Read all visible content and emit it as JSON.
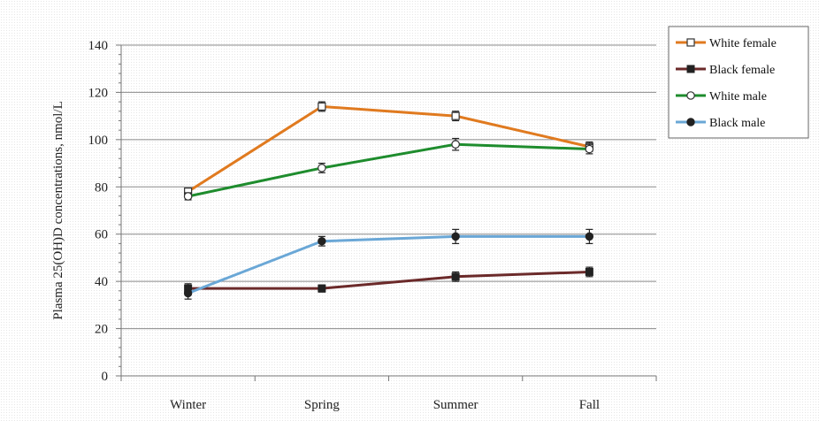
{
  "chart_data": {
    "type": "line",
    "title": "",
    "xlabel": "",
    "ylabel": "Plasma 25(OH)D concentrations, nmol/L",
    "categories": [
      "Winter",
      "Spring",
      "Summer",
      "Fall"
    ],
    "ylim": [
      0,
      140
    ],
    "yticks": [
      0,
      20,
      40,
      60,
      80,
      100,
      120,
      140
    ],
    "grid": true,
    "legend_position": "top-right",
    "series": [
      {
        "name": "White female",
        "values": [
          78,
          114,
          110,
          97
        ],
        "errors": [
          1.5,
          2,
          2,
          2
        ],
        "color": "#E07A1F",
        "marker": "open-square"
      },
      {
        "name": "Black female",
        "values": [
          37,
          37,
          42,
          44
        ],
        "errors": [
          2,
          1.5,
          2,
          2
        ],
        "color": "#6B2A2A",
        "marker": "filled-square"
      },
      {
        "name": "White male",
        "values": [
          76,
          88,
          98,
          96
        ],
        "errors": [
          1.5,
          2,
          2.5,
          2
        ],
        "color": "#1E8C2D",
        "marker": "open-circle"
      },
      {
        "name": "Black male",
        "values": [
          35,
          57,
          59,
          59
        ],
        "errors": [
          2.5,
          2,
          3,
          3
        ],
        "color": "#6AA7D6",
        "marker": "filled-circle"
      }
    ]
  }
}
